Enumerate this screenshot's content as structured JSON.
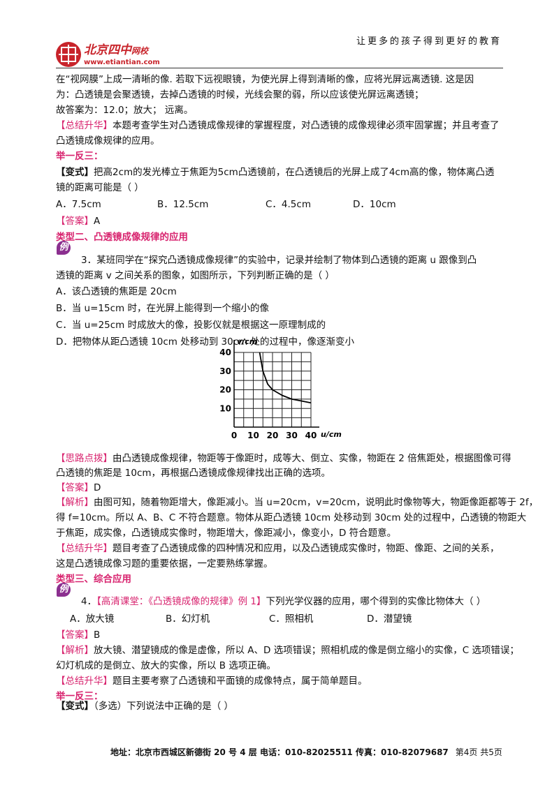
{
  "header": {
    "logo_brand": "北京四中",
    "logo_suffix": "网校",
    "logo_url": "www.etiantian.com",
    "slogan": "让更多的孩子得到更好的教育"
  },
  "intro": {
    "lines": [
      "在“视网膜”上成一清晰的像. 若取下远视眼镜，为使光屏上得到清晰的像，应将光屏远离透镜. 这是因",
      "为：凸透镜是会聚透镜，去掉凸透镜的时候，光线会聚的弱，所以应该使光屏远离透镜；",
      "故答案为：12.0；放大；  远离。"
    ]
  },
  "summary_1": {
    "label": "【总结升华】",
    "lines": [
      "本题考查学生对凸透镜成像规律的掌握程度，对凸透镜的成像规律必须牢固掌握；并且考查了",
      "凸透镜成像规律的应用。"
    ]
  },
  "practice_1": {
    "heading": "举一反三：",
    "variant": {
      "label": "【变式】",
      "lines": [
        "把高2cm的发光棒立于焦距为5cm凸透镜前，在凸透镜后的光屏上成了4cm高的像，物体离凸透",
        "镜的距离可能是（    ）"
      ]
    },
    "options": [
      "A．7.5cm",
      "B．12.5cm",
      "C．4.5cm",
      "D．10cm"
    ],
    "answer": {
      "label": "【答案】",
      "text": "A"
    }
  },
  "type_2": {
    "heading": "类型二、凸透镜成像规律的应用",
    "icon": "例",
    "question": [
      "3．某班同学在“探究凸透镜成像规律”的实验中，记录并绘制了物体到凸透镜的距离 u 跟像到凸",
      "透镜的距离 v 之间关系的图象，如图所示，下列判断正确的是（    ）"
    ],
    "options": [
      "A．该凸透镜的焦距是 20cm",
      "B．当 u=15cm 时，在光屏上能得到一个缩小的像",
      "C．当 u=25cm 时成放大的像，投影仪就是根据这一原理制成的",
      "D．把物体从距凸透镜 10cm 处移动到 30cm 处的过程中，像逐渐变小"
    ],
    "chart": {
      "type": "line",
      "xlabel": "u/cm",
      "ylabel": "v/cm",
      "x": [
        13.3,
        15,
        17.5,
        20,
        25,
        30,
        35,
        40
      ],
      "values": [
        40,
        30,
        23,
        20,
        17,
        15,
        14,
        13
      ],
      "color": "#000000",
      "xlim": [
        0,
        40
      ],
      "ylim": [
        0,
        40
      ],
      "xticks": [
        0,
        10,
        20,
        30,
        40
      ],
      "yticks": [
        10,
        20,
        30,
        40
      ],
      "minor_grid": [
        5,
        15,
        25,
        35
      ],
      "grid": true
    },
    "hint": {
      "label": "【思路点拨】",
      "lines": [
        "由凸透镜成像规律，物距等于像距时，成等大、倒立、实像，物距在 2 倍焦距处，根据图像可得",
        "凸透镜的焦距是 10cm，再根据凸透镜成像规律找出正确的选项。"
      ]
    },
    "answer": {
      "label": "【答案】",
      "text": "D"
    },
    "analysis": {
      "label": "【解析】",
      "lines": [
        "由图可知，随着物距增大，像距减小。当 u=20cm，v=20cm，说明此时像物等大，物距像距都等于 2f，",
        "得 f=10cm。所以 A、B、C 不符合题意。物体从距凸透镜 10cm 处移动到 30cm 处的过程中，凸透镜的物距大",
        "于焦距，成实像，凸透镜成实像时，物距增大，像距减小，像变小，D 符合题意。"
      ]
    },
    "summary": {
      "label": "【总结升华】",
      "lines": [
        "题目考查了凸透镜成像的四种情况和应用，以及凸透镜成实像时，物距、像距、之间的关系，",
        "这是凸透镜成像习题的重要依据，一定要熟练掌握。"
      ]
    }
  },
  "type_3": {
    "heading": "类型三、综合应用",
    "icon": "例",
    "question": {
      "number": "4．",
      "source": "【高清课堂：《凸透镜成像的规律》例 1】",
      "text": "下列光学仪器的应用，哪个得到的实像比物体大（    ）"
    },
    "options": [
      "A．放大镜",
      "B．幻灯机",
      "C．照相机",
      "D．潜望镜"
    ],
    "answer": {
      "label": "【答案】",
      "text": "B"
    },
    "analysis": {
      "label": "【解析】",
      "lines": [
        "放大镜、潜望镜成的像是虚像，所以 A、D 选项错误；照相机成的像是倒立缩小的实像，C 选项错误；",
        "幻灯机成的是倒立、放大的实像，所以 B 选项正确。"
      ]
    },
    "summary": {
      "label": "【总结升华】",
      "lines": [
        "题目主要考察了凸透镜和平面镜的成像特点，属于简单题目。"
      ]
    }
  },
  "practice_2": {
    "heading": "举一反三：",
    "variant": {
      "label": "【变式】",
      "text": "（多选）下列说法中正确的是（    ）"
    }
  },
  "footer": {
    "address": "地址：北京市西城区新德街 20 号 4 层  电话：010-82025511  传真：010-82079687",
    "page": "第4页  共5页"
  }
}
